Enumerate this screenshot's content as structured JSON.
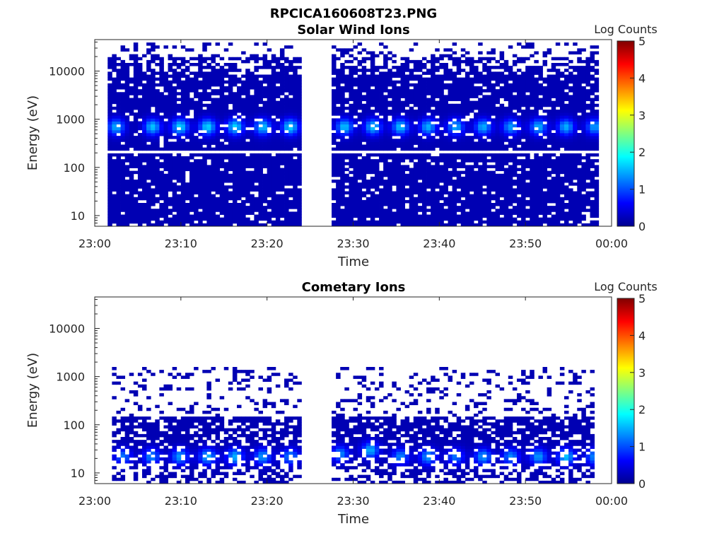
{
  "figure_title": "RPCICA160608T23.PNG",
  "colorbar_colors": [
    "#00008f",
    "#0000ff",
    "#0080ff",
    "#00ffff",
    "#80ff80",
    "#ffff00",
    "#ff8000",
    "#ff0000",
    "#800000"
  ],
  "chart_data": [
    {
      "type": "heatmap",
      "title": "Solar Wind Ions",
      "xlabel": "Time",
      "ylabel": "Energy (eV)",
      "y_scale": "log",
      "x_ticks": [
        "23:00",
        "23:10",
        "23:20",
        "23:30",
        "23:40",
        "23:50",
        "00:00"
      ],
      "x_range_minutes": [
        0,
        60
      ],
      "y_ticks": [
        "10",
        "100",
        "1000",
        "10000"
      ],
      "ylim": [
        6,
        45000
      ],
      "colorbar": {
        "label": "Log Counts",
        "min": 0,
        "max": 5,
        "ticks": [
          "0",
          "1",
          "2",
          "3",
          "4",
          "5"
        ]
      },
      "data_gap_minutes": [
        24,
        27.2
      ],
      "data_span_minutes": [
        1.5,
        58.5
      ],
      "filled_energy_range_eV": [
        6,
        20000
      ],
      "empty_energy_line_eV": 200,
      "background_log_counts": 0.2,
      "peaks": [
        {
          "t": 2.5,
          "energy": 700,
          "value": 1.3
        },
        {
          "t": 6.7,
          "energy": 700,
          "value": 1.4
        },
        {
          "t": 9.9,
          "energy": 700,
          "value": 1.5
        },
        {
          "t": 13.1,
          "energy": 700,
          "value": 1.5
        },
        {
          "t": 16.3,
          "energy": 700,
          "value": 1.5
        },
        {
          "t": 19.5,
          "energy": 700,
          "value": 1.4
        },
        {
          "t": 22.7,
          "energy": 700,
          "value": 1.5
        },
        {
          "t": 29.0,
          "energy": 700,
          "value": 1.4
        },
        {
          "t": 32.3,
          "energy": 700,
          "value": 1.4
        },
        {
          "t": 35.5,
          "energy": 700,
          "value": 1.4
        },
        {
          "t": 38.7,
          "energy": 700,
          "value": 1.3
        },
        {
          "t": 41.9,
          "energy": 700,
          "value": 1.3
        },
        {
          "t": 45.1,
          "energy": 700,
          "value": 1.3
        },
        {
          "t": 48.3,
          "energy": 700,
          "value": 1.2
        },
        {
          "t": 51.5,
          "energy": 700,
          "value": 1.3
        },
        {
          "t": 54.7,
          "energy": 700,
          "value": 1.3
        },
        {
          "t": 58.0,
          "energy": 700,
          "value": 1.2
        }
      ]
    },
    {
      "type": "heatmap",
      "title": "Cometary Ions",
      "xlabel": "Time",
      "ylabel": "Energy (eV)",
      "y_scale": "log",
      "x_ticks": [
        "23:00",
        "23:10",
        "23:20",
        "23:30",
        "23:40",
        "23:50",
        "00:00"
      ],
      "x_range_minutes": [
        0,
        60
      ],
      "y_ticks": [
        "10",
        "100",
        "1000",
        "10000"
      ],
      "ylim": [
        6,
        45000
      ],
      "colorbar": {
        "label": "Log Counts",
        "min": 0,
        "max": 5,
        "ticks": [
          "0",
          "1",
          "2",
          "3",
          "4",
          "5"
        ]
      },
      "data_gap_minutes": [
        24,
        27.2
      ],
      "data_span_minutes": [
        2,
        58
      ],
      "filled_energy_range_eV": [
        6,
        150
      ],
      "sparse_energy_range_eV": [
        150,
        1500
      ],
      "background_log_counts": 0.2,
      "peaks": [
        {
          "t": 3.3,
          "energy": 22,
          "value": 1.0
        },
        {
          "t": 6.6,
          "energy": 22,
          "value": 1.1
        },
        {
          "t": 9.9,
          "energy": 22,
          "value": 1.2
        },
        {
          "t": 13.1,
          "energy": 22,
          "value": 1.3
        },
        {
          "t": 16.3,
          "energy": 22,
          "value": 1.3
        },
        {
          "t": 19.5,
          "energy": 22,
          "value": 1.2
        },
        {
          "t": 22.7,
          "energy": 22,
          "value": 1.1
        },
        {
          "t": 28.5,
          "energy": 25,
          "value": 1.1
        },
        {
          "t": 32.0,
          "energy": 30,
          "value": 1.3
        },
        {
          "t": 35.5,
          "energy": 22,
          "value": 1.1
        },
        {
          "t": 38.7,
          "energy": 22,
          "value": 1.2
        },
        {
          "t": 41.9,
          "energy": 22,
          "value": 1.0
        },
        {
          "t": 45.1,
          "energy": 22,
          "value": 1.2
        },
        {
          "t": 48.3,
          "energy": 22,
          "value": 1.1
        },
        {
          "t": 51.5,
          "energy": 22,
          "value": 1.2
        },
        {
          "t": 54.7,
          "energy": 22,
          "value": 1.4
        },
        {
          "t": 58.0,
          "energy": 22,
          "value": 1.1
        }
      ]
    }
  ]
}
